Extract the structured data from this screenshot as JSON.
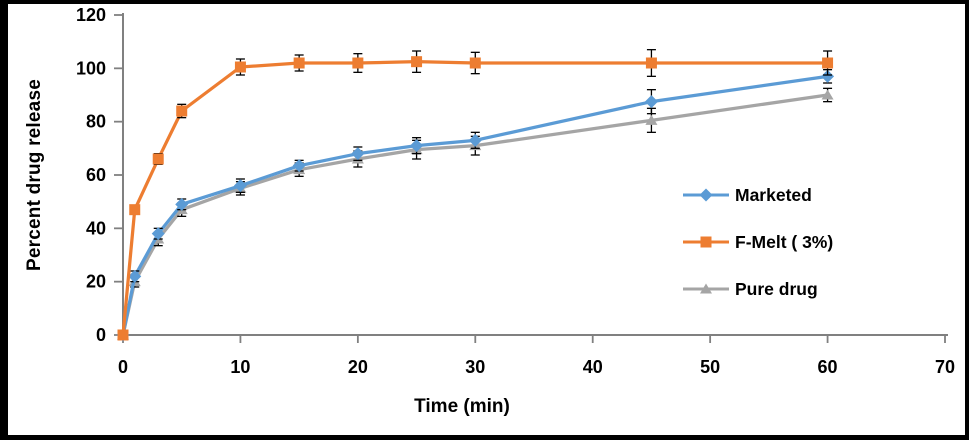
{
  "chart_data": {
    "type": "line",
    "title": "",
    "xlabel": "Time (min)",
    "ylabel": "Percent drug release",
    "xlim": [
      0,
      70
    ],
    "ylim": [
      0,
      120
    ],
    "x_ticks": [
      0,
      10,
      20,
      30,
      40,
      50,
      60,
      70
    ],
    "y_ticks": [
      0,
      20,
      40,
      60,
      80,
      100,
      120
    ],
    "grid": false,
    "legend_position": "right-inside",
    "axis_color": "#808080",
    "error_bar_color": "#000000",
    "x": [
      0,
      1,
      3,
      5,
      10,
      15,
      20,
      25,
      30,
      45,
      60
    ],
    "series": [
      {
        "name": "Marketed",
        "color": "#5B9BD5",
        "marker": "diamond",
        "values": [
          0,
          22,
          38,
          49,
          56,
          63.5,
          68,
          71,
          73,
          87.5,
          97
        ],
        "errors": [
          0,
          2,
          2,
          2,
          2.5,
          2,
          2.5,
          3,
          3,
          4.5,
          2.5
        ]
      },
      {
        "name": "F-Melt ( 3%)",
        "color": "#ED7D31",
        "marker": "square",
        "values": [
          0,
          47,
          66,
          84,
          100.5,
          102,
          102,
          102.5,
          102,
          102,
          102
        ],
        "errors": [
          0,
          1.5,
          2,
          2.5,
          3,
          3,
          3.5,
          4,
          4,
          5,
          4.5
        ]
      },
      {
        "name": "Pure drug",
        "color": "#A5A5A5",
        "marker": "triangle",
        "values": [
          0,
          20,
          36,
          47,
          55,
          62,
          66,
          69.5,
          71,
          80.5,
          90
        ],
        "errors": [
          0,
          2,
          2.5,
          2.5,
          2.5,
          2.5,
          3,
          3.5,
          3.5,
          4.5,
          2.5
        ]
      }
    ]
  }
}
